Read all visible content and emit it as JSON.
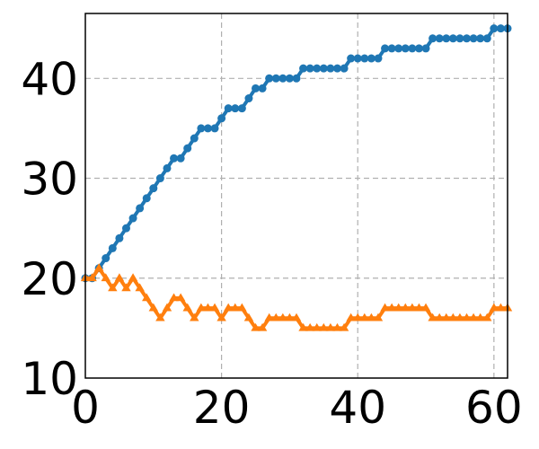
{
  "chart_data": {
    "type": "line",
    "title": "",
    "xlabel": "",
    "ylabel": "",
    "xlim": [
      0,
      62
    ],
    "ylim": [
      10,
      46.5
    ],
    "xticks": [
      0,
      20,
      40,
      60
    ],
    "yticks": [
      10,
      20,
      30,
      40
    ],
    "grid": true,
    "colors": {
      "series_1": "#1f77b4",
      "series_2": "#ff7f0e"
    },
    "x": [
      0,
      1,
      2,
      3,
      4,
      5,
      6,
      7,
      8,
      9,
      10,
      11,
      12,
      13,
      14,
      15,
      16,
      17,
      18,
      19,
      20,
      21,
      22,
      23,
      24,
      25,
      26,
      27,
      28,
      29,
      30,
      31,
      32,
      33,
      34,
      35,
      36,
      37,
      38,
      39,
      40,
      41,
      42,
      43,
      44,
      45,
      46,
      47,
      48,
      49,
      50,
      51,
      52,
      53,
      54,
      55,
      56,
      57,
      58,
      59,
      60,
      61,
      62
    ],
    "series": [
      {
        "marker": "circle",
        "values": [
          20,
          20,
          21,
          22,
          23,
          24,
          25,
          26,
          27,
          28,
          29,
          30,
          31,
          32,
          32,
          33,
          34,
          35,
          35,
          35,
          36,
          37,
          37,
          37,
          38,
          39,
          39,
          40,
          40,
          40,
          40,
          40,
          41,
          41,
          41,
          41,
          41,
          41,
          41,
          42,
          42,
          42,
          42,
          42,
          43,
          43,
          43,
          43,
          43,
          43,
          43,
          44,
          44,
          44,
          44,
          44,
          44,
          44,
          44,
          44,
          45,
          45,
          45
        ]
      },
      {
        "marker": "triangle",
        "values": [
          20,
          20,
          21,
          20,
          19,
          20,
          19,
          20,
          19,
          18,
          17,
          16,
          17,
          18,
          18,
          17,
          16,
          17,
          17,
          17,
          16,
          17,
          17,
          17,
          16,
          15,
          15,
          16,
          16,
          16,
          16,
          16,
          15,
          15,
          15,
          15,
          15,
          15,
          15,
          16,
          16,
          16,
          16,
          16,
          17,
          17,
          17,
          17,
          17,
          17,
          17,
          16,
          16,
          16,
          16,
          16,
          16,
          16,
          16,
          16,
          17,
          17,
          17
        ]
      }
    ]
  }
}
